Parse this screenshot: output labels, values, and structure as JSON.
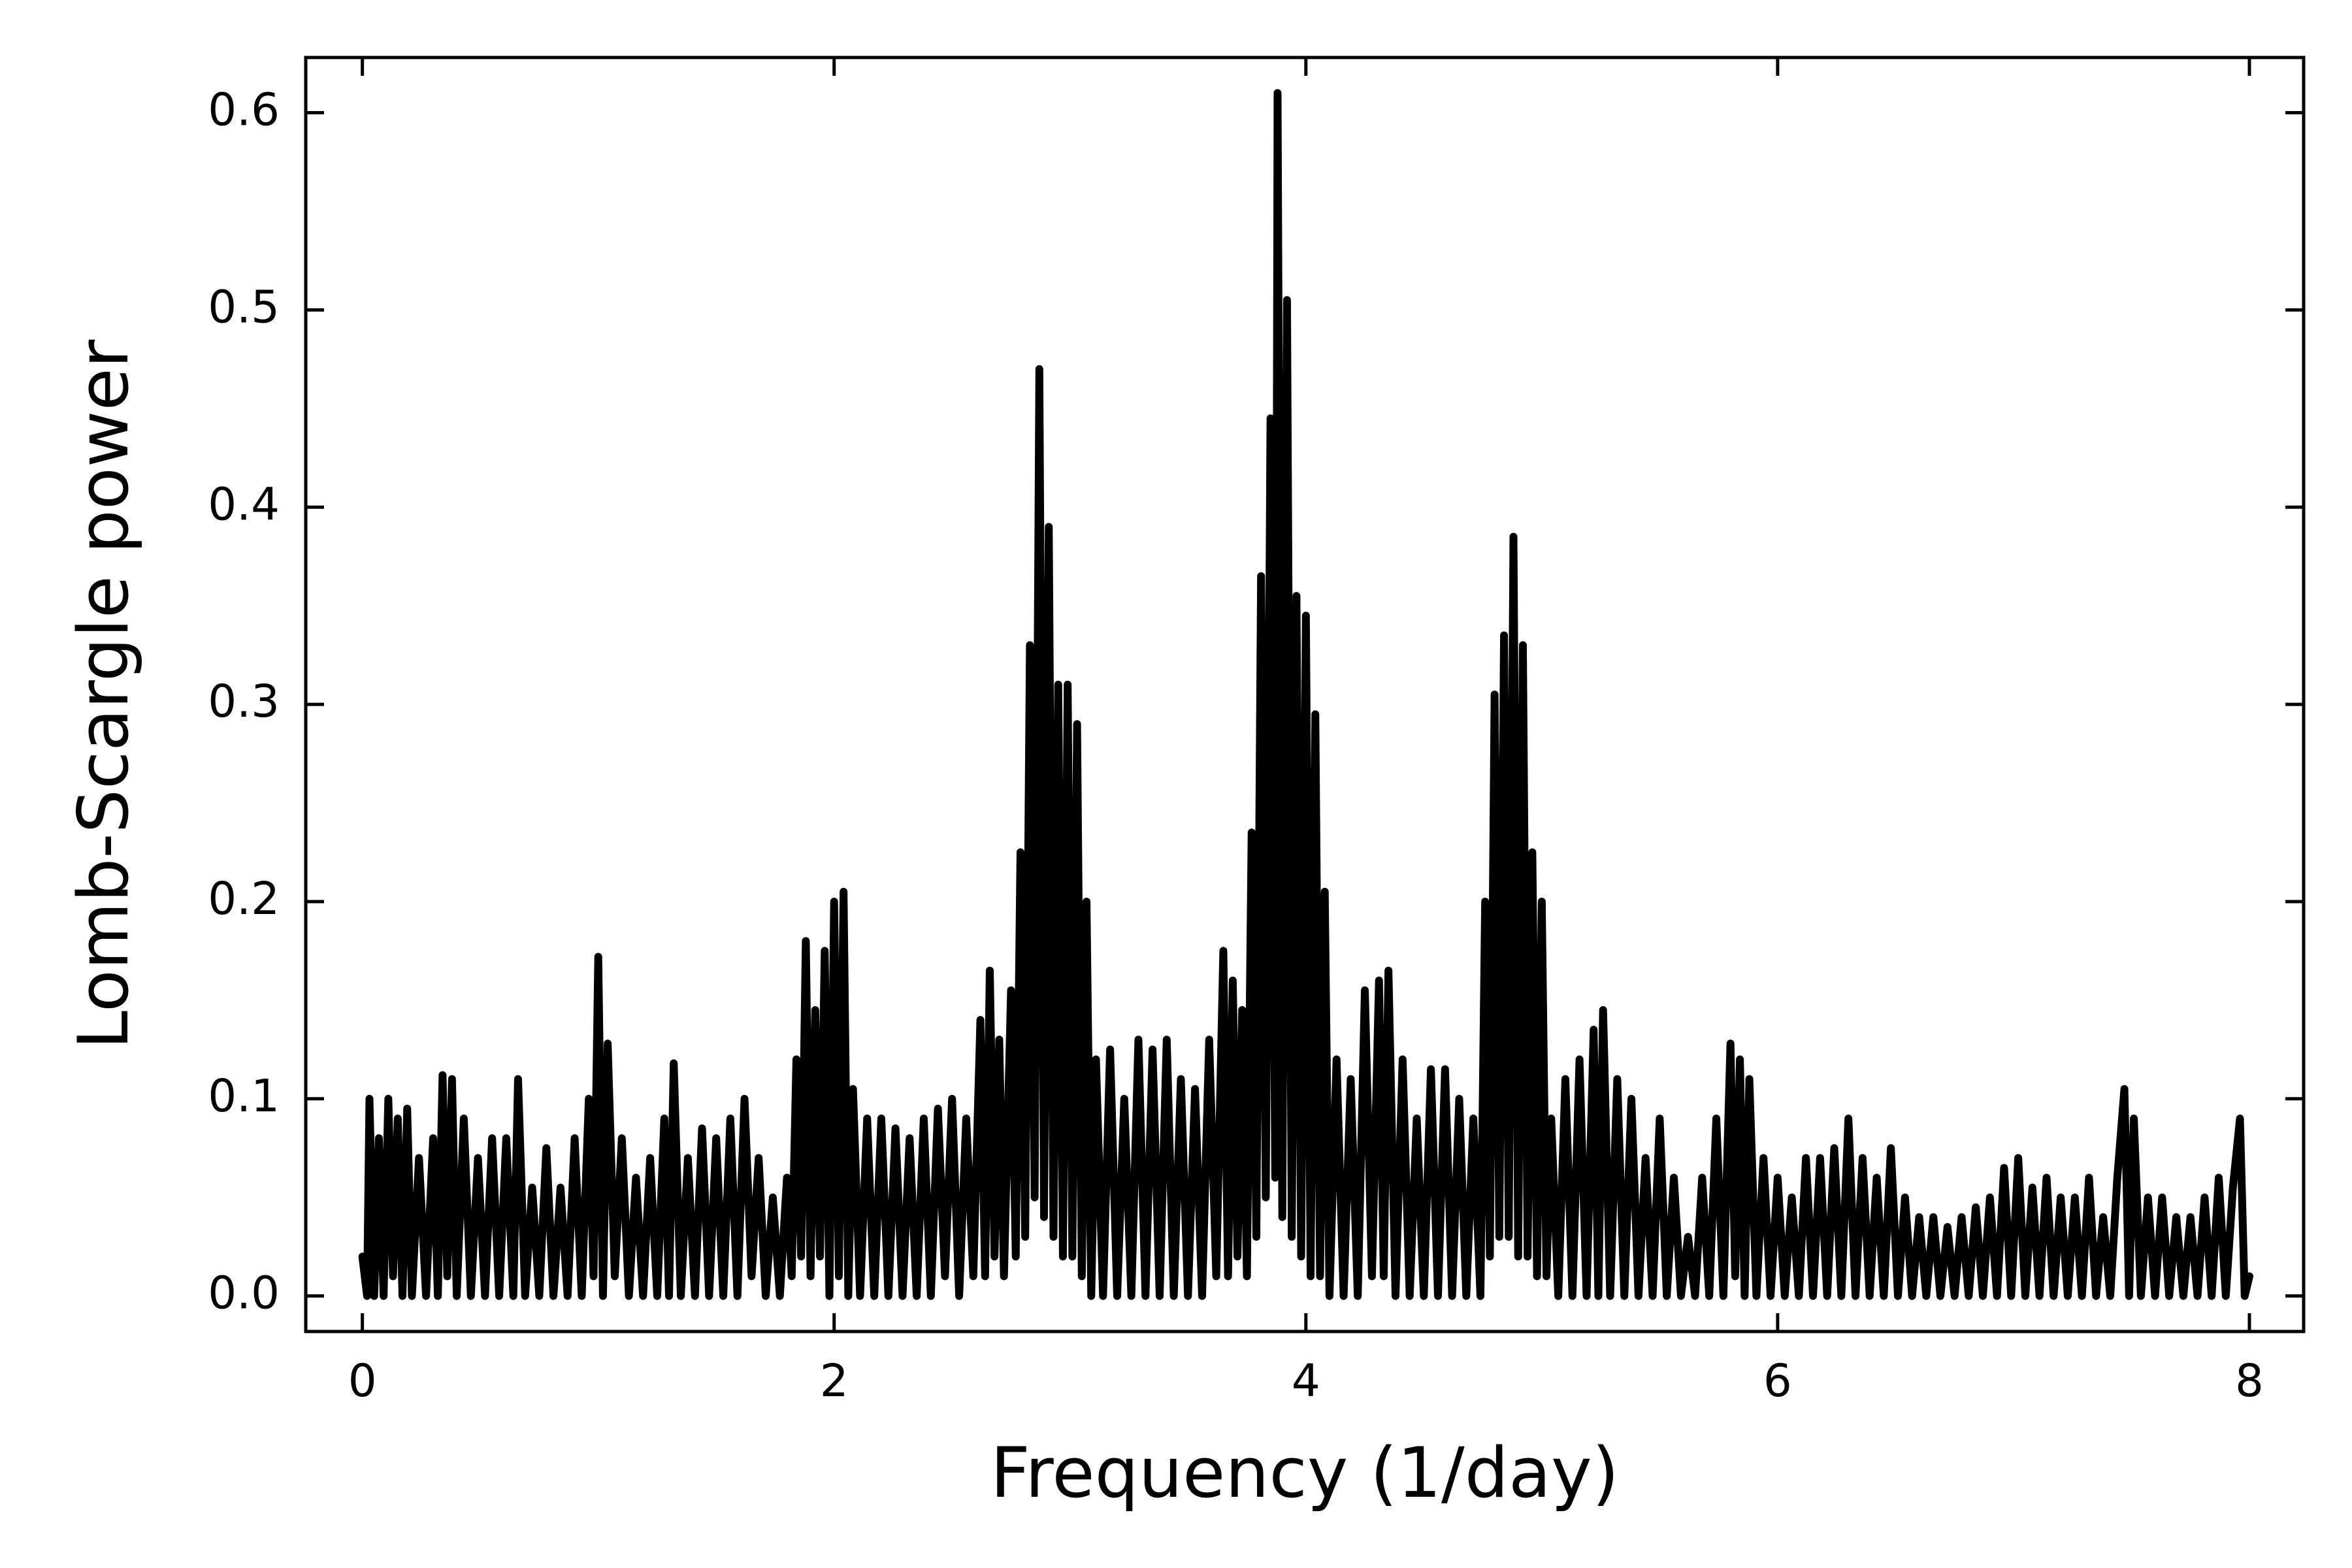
{
  "chart_data": {
    "type": "line",
    "xlabel": "Frequency (1/day)",
    "ylabel": "Lomb-Scargle power",
    "color": "#000000",
    "xlim": [
      -0.24,
      8.23
    ],
    "ylim": [
      -0.018,
      0.628
    ],
    "xticks": [
      0,
      2,
      4,
      6,
      8
    ],
    "yticks": [
      {
        "value": 0,
        "label": "0.0"
      },
      0.1,
      0.2,
      0.3,
      0.4,
      0.5,
      0.6
    ],
    "x": [
      0,
      0.02,
      0.03,
      0.05,
      0.07,
      0.09,
      0.11,
      0.13,
      0.15,
      0.17,
      0.19,
      0.21,
      0.24,
      0.27,
      0.3,
      0.32,
      0.34,
      0.36,
      0.38,
      0.4,
      0.43,
      0.46,
      0.49,
      0.52,
      0.55,
      0.58,
      0.61,
      0.64,
      0.66,
      0.69,
      0.72,
      0.75,
      0.78,
      0.81,
      0.84,
      0.87,
      0.9,
      0.93,
      0.96,
      0.98,
      1,
      1.02,
      1.04,
      1.07,
      1.1,
      1.13,
      1.16,
      1.19,
      1.22,
      1.25,
      1.28,
      1.3,
      1.32,
      1.35,
      1.38,
      1.41,
      1.44,
      1.47,
      1.5,
      1.53,
      1.56,
      1.59,
      1.62,
      1.65,
      1.68,
      1.71,
      1.74,
      1.77,
      1.8,
      1.82,
      1.84,
      1.86,
      1.88,
      1.9,
      1.92,
      1.94,
      1.96,
      1.98,
      2,
      2.02,
      2.04,
      2.06,
      2.08,
      2.11,
      2.14,
      2.17,
      2.2,
      2.23,
      2.26,
      2.29,
      2.32,
      2.35,
      2.38,
      2.41,
      2.44,
      2.47,
      2.5,
      2.53,
      2.56,
      2.59,
      2.62,
      2.64,
      2.66,
      2.68,
      2.7,
      2.72,
      2.75,
      2.77,
      2.79,
      2.81,
      2.83,
      2.85,
      2.87,
      2.89,
      2.91,
      2.93,
      2.95,
      2.97,
      2.99,
      3.01,
      3.03,
      3.05,
      3.07,
      3.09,
      3.11,
      3.14,
      3.17,
      3.2,
      3.23,
      3.26,
      3.29,
      3.32,
      3.35,
      3.38,
      3.41,
      3.44,
      3.47,
      3.5,
      3.53,
      3.56,
      3.59,
      3.62,
      3.65,
      3.67,
      3.69,
      3.71,
      3.73,
      3.75,
      3.77,
      3.79,
      3.81,
      3.83,
      3.85,
      3.87,
      3.88,
      3.9,
      3.92,
      3.94,
      3.96,
      3.98,
      4,
      4.02,
      4.04,
      4.06,
      4.08,
      4.1,
      4.13,
      4.16,
      4.19,
      4.22,
      4.25,
      4.28,
      4.31,
      4.33,
      4.35,
      4.38,
      4.41,
      4.44,
      4.47,
      4.5,
      4.53,
      4.56,
      4.59,
      4.62,
      4.65,
      4.68,
      4.71,
      4.74,
      4.76,
      4.78,
      4.8,
      4.82,
      4.84,
      4.86,
      4.88,
      4.9,
      4.92,
      4.94,
      4.96,
      4.98,
      5,
      5.02,
      5.04,
      5.07,
      5.1,
      5.13,
      5.16,
      5.19,
      5.22,
      5.24,
      5.26,
      5.29,
      5.32,
      5.35,
      5.38,
      5.41,
      5.44,
      5.47,
      5.5,
      5.53,
      5.56,
      5.59,
      5.62,
      5.65,
      5.68,
      5.71,
      5.74,
      5.77,
      5.8,
      5.82,
      5.84,
      5.86,
      5.88,
      5.91,
      5.94,
      5.97,
      6,
      6.03,
      6.06,
      6.09,
      6.12,
      6.15,
      6.18,
      6.21,
      6.24,
      6.27,
      6.3,
      6.33,
      6.36,
      6.39,
      6.42,
      6.45,
      6.48,
      6.51,
      6.54,
      6.57,
      6.6,
      6.63,
      6.66,
      6.69,
      6.72,
      6.75,
      6.78,
      6.81,
      6.84,
      6.87,
      6.9,
      6.93,
      6.96,
      6.99,
      7.02,
      7.05,
      7.08,
      7.11,
      7.14,
      7.17,
      7.2,
      7.23,
      7.26,
      7.29,
      7.32,
      7.35,
      7.38,
      7.41,
      7.44,
      7.47,
      7.49,
      7.51,
      7.54,
      7.57,
      7.6,
      7.63,
      7.66,
      7.69,
      7.72,
      7.75,
      7.78,
      7.81,
      7.84,
      7.87,
      7.9,
      7.93,
      7.96,
      7.98,
      8
    ],
    "values": [
      0.02,
      0,
      0.1,
      0,
      0.08,
      0,
      0.1,
      0.01,
      0.09,
      0,
      0.095,
      0,
      0.07,
      0,
      0.08,
      0,
      0.112,
      0.01,
      0.11,
      0,
      0.09,
      0,
      0.07,
      0,
      0.08,
      0,
      0.08,
      0,
      0.11,
      0,
      0.055,
      0,
      0.075,
      0,
      0.055,
      0,
      0.08,
      0,
      0.1,
      0.01,
      0.172,
      0,
      0.128,
      0.01,
      0.08,
      0,
      0.06,
      0,
      0.07,
      0,
      0.09,
      0,
      0.118,
      0,
      0.07,
      0,
      0.085,
      0,
      0.08,
      0,
      0.09,
      0,
      0.1,
      0.01,
      0.07,
      0,
      0.05,
      0,
      0.06,
      0.01,
      0.12,
      0.02,
      0.18,
      0.01,
      0.145,
      0.02,
      0.175,
      0,
      0.2,
      0.01,
      0.205,
      0,
      0.105,
      0,
      0.09,
      0,
      0.09,
      0,
      0.085,
      0,
      0.08,
      0,
      0.09,
      0,
      0.095,
      0.01,
      0.1,
      0,
      0.09,
      0.01,
      0.14,
      0.01,
      0.165,
      0.02,
      0.13,
      0.01,
      0.155,
      0.02,
      0.225,
      0.03,
      0.33,
      0.05,
      0.47,
      0.04,
      0.39,
      0.03,
      0.31,
      0.02,
      0.31,
      0.02,
      0.29,
      0.01,
      0.2,
      0,
      0.12,
      0,
      0.125,
      0,
      0.1,
      0,
      0.13,
      0,
      0.125,
      0,
      0.13,
      0,
      0.11,
      0,
      0.105,
      0,
      0.13,
      0.01,
      0.175,
      0.01,
      0.16,
      0.02,
      0.145,
      0.01,
      0.235,
      0.03,
      0.365,
      0.05,
      0.445,
      0.06,
      0.61,
      0.04,
      0.505,
      0.03,
      0.355,
      0.02,
      0.345,
      0.01,
      0.295,
      0.01,
      0.205,
      0,
      0.12,
      0,
      0.11,
      0,
      0.155,
      0.01,
      0.16,
      0.01,
      0.165,
      0,
      0.12,
      0,
      0.09,
      0,
      0.115,
      0,
      0.115,
      0,
      0.1,
      0,
      0.09,
      0,
      0.2,
      0.02,
      0.305,
      0.03,
      0.335,
      0.03,
      0.385,
      0.02,
      0.33,
      0.02,
      0.225,
      0.01,
      0.2,
      0.01,
      0.09,
      0,
      0.11,
      0,
      0.12,
      0,
      0.135,
      0,
      0.145,
      0,
      0.11,
      0,
      0.1,
      0,
      0.07,
      0,
      0.09,
      0,
      0.06,
      0,
      0.03,
      0,
      0.06,
      0,
      0.09,
      0,
      0.128,
      0.01,
      0.12,
      0,
      0.11,
      0,
      0.07,
      0,
      0.06,
      0,
      0.05,
      0,
      0.07,
      0,
      0.07,
      0,
      0.075,
      0,
      0.09,
      0,
      0.07,
      0,
      0.06,
      0,
      0.075,
      0,
      0.05,
      0,
      0.04,
      0,
      0.04,
      0,
      0.035,
      0,
      0.04,
      0,
      0.045,
      0,
      0.05,
      0,
      0.065,
      0,
      0.07,
      0,
      0.055,
      0,
      0.06,
      0,
      0.05,
      0,
      0.05,
      0,
      0.06,
      0,
      0.04,
      0,
      0.06,
      0.105,
      0,
      0.09,
      0,
      0.05,
      0,
      0.05,
      0,
      0.04,
      0,
      0.04,
      0,
      0.05,
      0,
      0.06,
      0,
      0.055,
      0.09,
      0,
      0.01
    ]
  }
}
